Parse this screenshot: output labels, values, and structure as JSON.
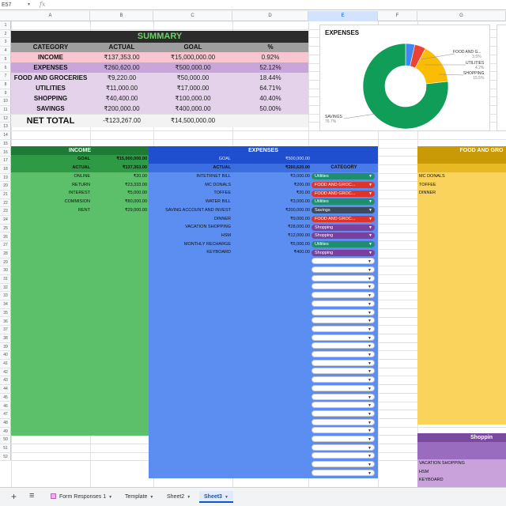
{
  "formula_bar": {
    "cell_ref": "E57",
    "fx": "fx"
  },
  "columns": [
    "A",
    "B",
    "C",
    "D",
    "E",
    "F",
    "G"
  ],
  "rows": [
    "1",
    "2",
    "3",
    "4",
    "5",
    "6",
    "7",
    "8",
    "9",
    "10",
    "11",
    "12",
    "13",
    "14",
    "15",
    "16",
    "17",
    "18",
    "19",
    "20",
    "21",
    "22",
    "23",
    "24",
    "25",
    "26",
    "27",
    "28",
    "29",
    "30",
    "31",
    "32",
    "33",
    "34",
    "35",
    "36",
    "37",
    "38",
    "39",
    "40",
    "41",
    "42",
    "43",
    "44",
    "45",
    "46",
    "47",
    "48",
    "49",
    "50",
    "51",
    "52"
  ],
  "summary": {
    "title": "SUMMARY",
    "headers": [
      "CATEGORY",
      "ACTUAL",
      "GOAL",
      "%"
    ],
    "rows": [
      {
        "category": "INCOME",
        "actual": "₹137,353.00",
        "goal": "₹15,000,000.00",
        "pct": "0.92%"
      },
      {
        "category": "EXPENSES",
        "actual": "₹260,620.00",
        "goal": "₹500,000.00",
        "pct": "52.12%"
      },
      {
        "category": "FOOD AND GROCERIES",
        "actual": "₹9,220.00",
        "goal": "₹50,000.00",
        "pct": "18.44%"
      },
      {
        "category": "UTILITIES",
        "actual": "₹11,000.00",
        "goal": "₹17,000.00",
        "pct": "64.71%"
      },
      {
        "category": "SHOPPING",
        "actual": "₹40,400.00",
        "goal": "₹100,000.00",
        "pct": "40.40%"
      },
      {
        "category": "SAVINGS",
        "actual": "₹200,000.00",
        "goal": "₹400,000.00",
        "pct": "50.00%"
      }
    ],
    "net_total": {
      "label": "NET TOTAL",
      "actual": "-₹123,267.00",
      "goal": "₹14,500,000.00"
    }
  },
  "expenses_chart": {
    "title": "EXPENSES",
    "labels": [
      {
        "name": "FOOD AND G...",
        "pct": "3.5%"
      },
      {
        "name": "UTILITIES",
        "pct": "4.2%"
      },
      {
        "name": "SHOPPING",
        "pct": "15.5%"
      },
      {
        "name": "SAVINGS",
        "pct": "76.7%"
      }
    ]
  },
  "chart_data": {
    "type": "pie",
    "title": "EXPENSES",
    "categories": [
      "FOOD AND G...",
      "UTILITIES",
      "SHOPPING",
      "SAVINGS"
    ],
    "values": [
      3.5,
      4.2,
      15.5,
      76.7
    ],
    "colors": [
      "#4285f4",
      "#ea4335",
      "#fbbc04",
      "#0f9d58"
    ],
    "donut": true
  },
  "income": {
    "title": "INCOME",
    "goal_label": "GOAL",
    "goal_value": "₹15,000,000.00",
    "actual_label": "ACTUAL",
    "actual_value": "₹137,353.00",
    "items": [
      {
        "name": "ONLINE",
        "amount": "₹20.00"
      },
      {
        "name": "RETURN",
        "amount": "₹23,333.00"
      },
      {
        "name": "INTEREST",
        "amount": "₹5,000.00"
      },
      {
        "name": "COMMISION",
        "amount": "₹80,000.00"
      },
      {
        "name": "RENT",
        "amount": "₹29,000.00"
      }
    ]
  },
  "expenses": {
    "title": "EXPENSES",
    "goal_label": "GOAL",
    "goal_value": "₹500,000.00",
    "actual_label": "ACTUAL",
    "actual_value": "₹260,620.00",
    "category_header": "CATEGORY",
    "items": [
      {
        "name": "INTETRNET BILL",
        "amount": "₹3,000.00",
        "category": "Utilities",
        "color": "#1e8e6e"
      },
      {
        "name": "MC DONALS",
        "amount": "₹200.00",
        "category": "FOOD AND GROC...",
        "color": "#e0342b"
      },
      {
        "name": "TOFFEE",
        "amount": "₹20.00",
        "category": "FOOD AND GROC...",
        "color": "#e0342b"
      },
      {
        "name": "WATER BILL",
        "amount": "₹3,000.00",
        "category": "Utilities",
        "color": "#1e8e6e"
      },
      {
        "name": "SAVING ACCOUNT AND INVEST",
        "amount": "₹200,000.00",
        "category": "Savings",
        "color": "#3d4a57"
      },
      {
        "name": "DINNER",
        "amount": "₹9,000.00",
        "category": "FOOD AND GROC...",
        "color": "#e0342b"
      },
      {
        "name": "VACATION SHOPPING",
        "amount": "₹28,000.00",
        "category": "Shopping",
        "color": "#7b3f9e"
      },
      {
        "name": "HSM",
        "amount": "₹12,000.00",
        "category": "Shopping",
        "color": "#7b3f9e"
      },
      {
        "name": "MONTHLY RECHARGE",
        "amount": "₹5,000.00",
        "category": "Utilities",
        "color": "#1e8e6e"
      },
      {
        "name": "KEYBOARD",
        "amount": "₹400.00",
        "category": "Shopping",
        "color": "#7b3f9e"
      }
    ]
  },
  "food_panel": {
    "title": "FOOD AND GRO",
    "items": [
      "MC DONALS",
      "TOFFEE",
      "DINNER"
    ]
  },
  "shopping_panel": {
    "title": "Shoppin",
    "items": [
      "VACATION SHOPPING",
      "HSM",
      "KEYBOARD"
    ]
  },
  "tabs": {
    "add_icon": "+",
    "menu_icon": "≡",
    "items": [
      {
        "label": "Form Responses 1",
        "active": false
      },
      {
        "label": "Template",
        "active": false
      },
      {
        "label": "Sheet2",
        "active": false
      },
      {
        "label": "Sheet3",
        "active": true
      }
    ]
  },
  "colors": {
    "summary_header": "#2b2b2b",
    "income_pink": "#f7c6d1",
    "expenses_violet": "#c9a6d9",
    "lavender": "#e3d2ea",
    "income_green": "#5cbf6a",
    "income_dark": "#1f7a36",
    "expenses_blue": "#5b8ef0",
    "expenses_dark": "#1f4fcf",
    "food_yellow": "#f9d35c",
    "food_dark": "#c99a06",
    "shopping_purple": "#7a4aa0"
  }
}
